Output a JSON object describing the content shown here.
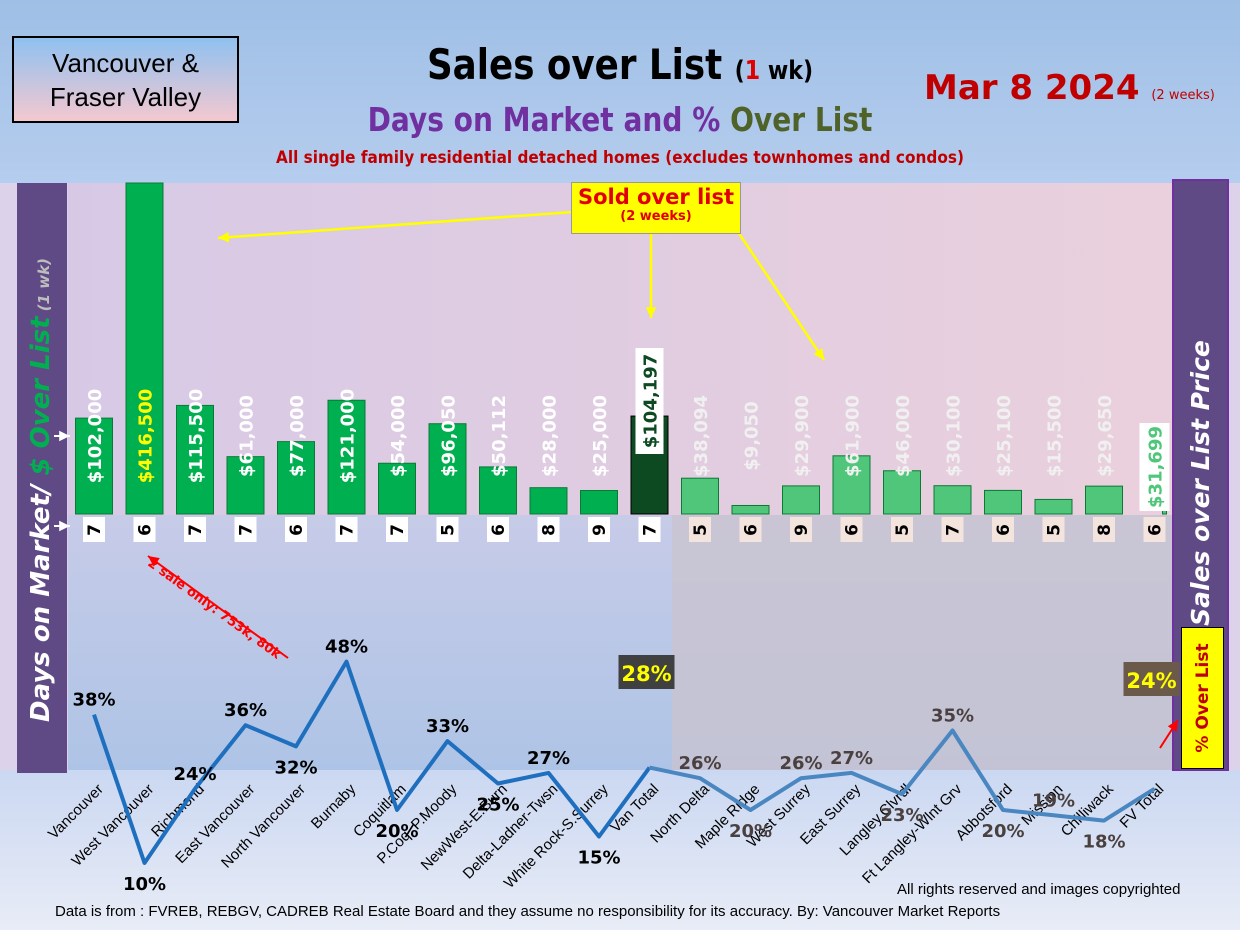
{
  "region_box": "Vancouver & Fraser Valley",
  "title": {
    "main": "Sales over List",
    "open_paren": "(",
    "weeks_num": "1",
    "weeks_unit": " wk)"
  },
  "subtitle": {
    "part1": "Days on Market and % ",
    "part2": "Over List"
  },
  "subtitle2": "All single family residential detached homes (excludes townhomes and condos)",
  "date": {
    "main": "Mar 8  2024",
    "note": "(2 weeks)"
  },
  "sold_box": {
    "line1": "Sold over list",
    "line2": "(2 weeks)"
  },
  "annotation": "2 sale only: 753k, 80k",
  "left_axis": {
    "part1": "Days on Market/ ",
    "part2": "$ Over List",
    "part3": " (1 wk)"
  },
  "right_axis": "Sales over List Price",
  "pct_legend": "% Over List",
  "rights": "All rights reserved and  images copyrighted",
  "source": "Data is from : FVREB, REBGV, CADREB Real Estate Board and they assume no responsibility for its accuracy. By: Vancouver Market Reports",
  "colors": {
    "bar_green": "#00b050",
    "van_total": "#0d4a22",
    "fv_green": "#4fc67a",
    "line_van": "#1f6fbf",
    "line_fv": "#4a86c0",
    "title_purple": "#7030a0",
    "date_red": "#c00000"
  },
  "chart_data": {
    "type": "bar",
    "categories": [
      "Vancouver",
      "West Vancouver",
      "Richmond",
      "East Vancouver",
      "North Vancouver",
      "Burnaby",
      "Coquitlam",
      "P.Coq, P.Moody",
      "NewWest-E.Burn",
      "Delta-Ladner-Twsn",
      "White Rock-S.Surrey",
      "Van Total",
      "North Delta",
      "Maple Ridge",
      "West Surrey",
      "East Surrey",
      "Langley,Clvrdl",
      "Ft Langley-Wlnt Grv",
      "Abbotsford",
      "Mission",
      "Chilliwack",
      "FV Total"
    ],
    "series": [
      {
        "values": [
          102000,
          416500,
          115500,
          61000,
          77000,
          121000,
          54000,
          96050,
          50112,
          28000,
          25000,
          104197,
          38094,
          9050,
          29900,
          61900,
          46000,
          30100,
          25100,
          15500,
          29650,
          31699
        ],
        "labels": [
          "$102,000",
          "$416,500",
          "$115,500",
          "$61,000",
          "$77,000",
          "$121,000",
          "$54,000",
          "$96,050",
          "$50,112",
          "$28,000",
          "$25,000",
          "$104,197",
          "$38,094",
          "$9,050",
          "$29,900",
          "$61,900",
          "$46,000",
          "$30,100",
          "$25,100",
          "$15,500",
          "$29,650",
          "$31,699"
        ]
      },
      {
        "values": [
          7,
          6,
          7,
          7,
          6,
          7,
          7,
          5,
          6,
          8,
          9,
          7,
          5,
          6,
          9,
          6,
          5,
          7,
          6,
          5,
          8,
          6
        ]
      },
      {
        "values": [
          38,
          10,
          24,
          36,
          32,
          48,
          20,
          33,
          25,
          27,
          15,
          28,
          26,
          20,
          26,
          27,
          23,
          35,
          20,
          19,
          18,
          24
        ],
        "labels": [
          "38%",
          "10%",
          "24%",
          "36%",
          "32%",
          "48%",
          "20%",
          "33%",
          "25%",
          "27%",
          "15%",
          "28%",
          "26%",
          "20%",
          "26%",
          "27%",
          "23%",
          "35%",
          "20%",
          "19%",
          "18%",
          "24%"
        ]
      }
    ]
  }
}
